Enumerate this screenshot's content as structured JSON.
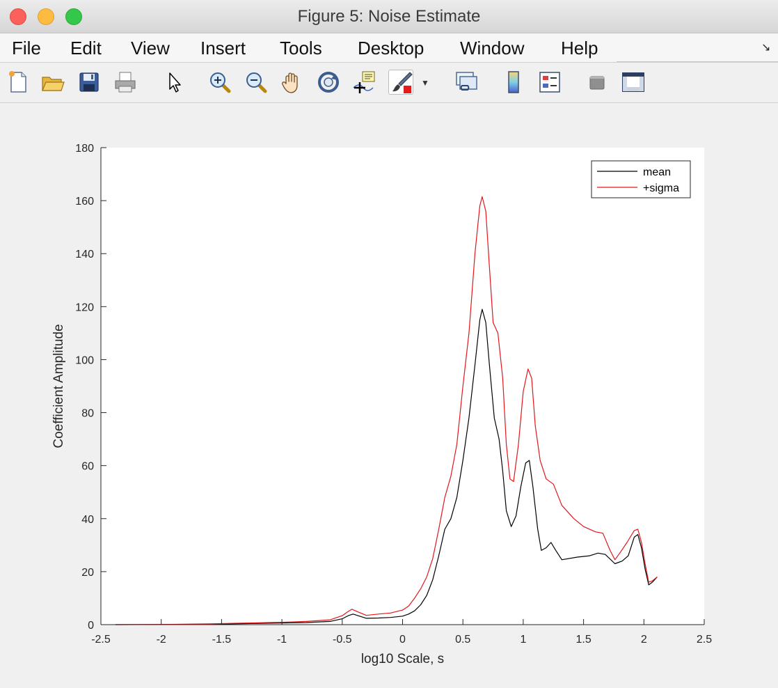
{
  "window": {
    "title": "Figure 5: Noise Estimate"
  },
  "menu": [
    "File",
    "Edit",
    "View",
    "Insert",
    "Tools",
    "Desktop",
    "Window",
    "Help"
  ],
  "toolbar": {
    "icons": [
      "new-figure-icon",
      "open-file-icon",
      "save-icon",
      "print-icon",
      "pointer-icon",
      "zoom-in-icon",
      "zoom-out-icon",
      "pan-icon",
      "rotate-3d-icon",
      "data-cursor-icon",
      "brush-icon",
      "link-plot-icon",
      "colorbar-icon",
      "legend-icon",
      "hide-plot-tools-icon",
      "show-plot-tools-icon"
    ]
  },
  "chart_data": {
    "type": "line",
    "title": "",
    "xlabel": "log10 Scale, s",
    "ylabel": "Coefficient Amplitude",
    "xlim": [
      -2.5,
      2.5
    ],
    "ylim": [
      0,
      180
    ],
    "xticks": [
      -2.5,
      -2,
      -1.5,
      -1,
      -0.5,
      0,
      0.5,
      1,
      1.5,
      2,
      2.5
    ],
    "yticks": [
      0,
      20,
      40,
      60,
      80,
      100,
      120,
      140,
      160,
      180
    ],
    "grid": false,
    "legend_position": "top-right",
    "series": [
      {
        "name": "mean",
        "color": "#000000",
        "points": [
          [
            -2.38,
            0
          ],
          [
            -2.0,
            0.05
          ],
          [
            -1.6,
            0.15
          ],
          [
            -1.3,
            0.4
          ],
          [
            -1.0,
            0.6
          ],
          [
            -0.8,
            0.8
          ],
          [
            -0.6,
            1.2
          ],
          [
            -0.5,
            2.2
          ],
          [
            -0.45,
            3.4
          ],
          [
            -0.41,
            4.0
          ],
          [
            -0.37,
            3.4
          ],
          [
            -0.3,
            2.4
          ],
          [
            -0.2,
            2.5
          ],
          [
            -0.1,
            2.7
          ],
          [
            0.0,
            3.2
          ],
          [
            0.05,
            4.0
          ],
          [
            0.1,
            5.2
          ],
          [
            0.15,
            7.5
          ],
          [
            0.2,
            11
          ],
          [
            0.25,
            17
          ],
          [
            0.3,
            26
          ],
          [
            0.35,
            36
          ],
          [
            0.4,
            40
          ],
          [
            0.45,
            48
          ],
          [
            0.5,
            62
          ],
          [
            0.55,
            78
          ],
          [
            0.6,
            98
          ],
          [
            0.64,
            115
          ],
          [
            0.66,
            119
          ],
          [
            0.69,
            114
          ],
          [
            0.72,
            98
          ],
          [
            0.76,
            78
          ],
          [
            0.8,
            70
          ],
          [
            0.83,
            58
          ],
          [
            0.86,
            43
          ],
          [
            0.9,
            37
          ],
          [
            0.94,
            41
          ],
          [
            0.98,
            52
          ],
          [
            1.02,
            61
          ],
          [
            1.05,
            62
          ],
          [
            1.08,
            52
          ],
          [
            1.12,
            36
          ],
          [
            1.15,
            28
          ],
          [
            1.19,
            29
          ],
          [
            1.23,
            31
          ],
          [
            1.27,
            28
          ],
          [
            1.32,
            24.5
          ],
          [
            1.45,
            25.5
          ],
          [
            1.55,
            26
          ],
          [
            1.62,
            27
          ],
          [
            1.68,
            26.5
          ],
          [
            1.76,
            23
          ],
          [
            1.82,
            24
          ],
          [
            1.87,
            26
          ],
          [
            1.92,
            33
          ],
          [
            1.95,
            34
          ],
          [
            1.98,
            29
          ],
          [
            2.01,
            21
          ],
          [
            2.04,
            15
          ],
          [
            2.07,
            16
          ],
          [
            2.11,
            18
          ]
        ]
      },
      {
        "name": "+sigma",
        "color": "#e0171b",
        "points": [
          [
            -2.38,
            0
          ],
          [
            -2.0,
            0.08
          ],
          [
            -1.6,
            0.3
          ],
          [
            -1.3,
            0.6
          ],
          [
            -1.0,
            0.9
          ],
          [
            -0.8,
            1.2
          ],
          [
            -0.6,
            1.8
          ],
          [
            -0.5,
            3.4
          ],
          [
            -0.45,
            5.0
          ],
          [
            -0.42,
            5.8
          ],
          [
            -0.37,
            4.8
          ],
          [
            -0.3,
            3.5
          ],
          [
            -0.2,
            4.0
          ],
          [
            -0.1,
            4.4
          ],
          [
            0.0,
            5.5
          ],
          [
            0.05,
            7.0
          ],
          [
            0.1,
            10
          ],
          [
            0.15,
            13.5
          ],
          [
            0.2,
            18
          ],
          [
            0.25,
            25
          ],
          [
            0.3,
            36
          ],
          [
            0.35,
            48
          ],
          [
            0.4,
            56
          ],
          [
            0.45,
            68
          ],
          [
            0.5,
            90
          ],
          [
            0.55,
            110
          ],
          [
            0.6,
            140
          ],
          [
            0.64,
            158
          ],
          [
            0.66,
            161.5
          ],
          [
            0.69,
            156
          ],
          [
            0.72,
            135
          ],
          [
            0.75,
            114
          ],
          [
            0.79,
            110
          ],
          [
            0.83,
            93
          ],
          [
            0.86,
            68
          ],
          [
            0.89,
            55
          ],
          [
            0.92,
            54
          ],
          [
            0.96,
            68
          ],
          [
            1.0,
            88
          ],
          [
            1.04,
            96.5
          ],
          [
            1.07,
            93
          ],
          [
            1.1,
            75
          ],
          [
            1.14,
            62
          ],
          [
            1.19,
            55
          ],
          [
            1.25,
            53
          ],
          [
            1.32,
            45
          ],
          [
            1.42,
            40
          ],
          [
            1.5,
            37
          ],
          [
            1.6,
            35
          ],
          [
            1.66,
            34.5
          ],
          [
            1.72,
            28
          ],
          [
            1.76,
            24.5
          ],
          [
            1.8,
            27
          ],
          [
            1.86,
            31
          ],
          [
            1.92,
            35.5
          ],
          [
            1.95,
            36
          ],
          [
            1.98,
            31
          ],
          [
            2.01,
            23
          ],
          [
            2.04,
            16
          ],
          [
            2.07,
            16.5
          ],
          [
            2.11,
            18
          ]
        ]
      }
    ]
  }
}
